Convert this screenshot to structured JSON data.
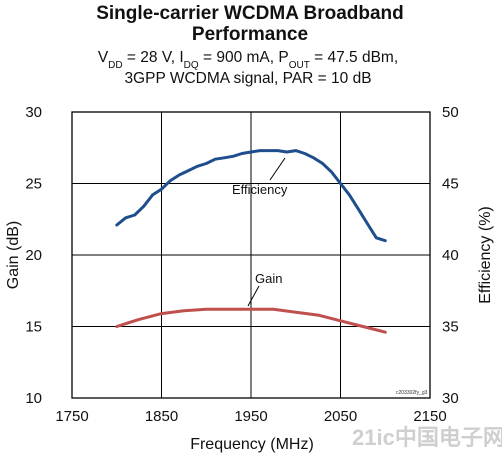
{
  "chart_data": {
    "type": "line",
    "title_lines": [
      "Single-carrier WCDMA Broadband",
      "Performance"
    ],
    "subtitle": {
      "line1_parts": [
        {
          "t": "V",
          "sub": "DD"
        },
        {
          "t": " = 28 V, I",
          "sub": "DQ"
        },
        {
          "t": " = 900 mA, P",
          "sub": "OUT"
        },
        {
          "t": " = 47.5 dBm,",
          "sub": ""
        }
      ],
      "line2": "3GPP WCDMA signal, PAR = 10 dB"
    },
    "xlabel": "Frequency (MHz)",
    "ylabel_left": "Gain (dB)",
    "ylabel_right": "Efficiency (%)",
    "xlim": [
      1750,
      2150
    ],
    "ylim_left": [
      10,
      30
    ],
    "ylim_right": [
      30,
      50
    ],
    "x_ticks": [
      1750,
      1850,
      1950,
      2050,
      2150
    ],
    "y_ticks_left": [
      10,
      15,
      20,
      25,
      30
    ],
    "y_ticks_right": [
      30,
      35,
      40,
      45,
      50
    ],
    "grid": true,
    "series": [
      {
        "name": "Efficiency",
        "axis": "right",
        "color": "#1f4e8c",
        "x": [
          1800,
          1810,
          1820,
          1830,
          1840,
          1850,
          1860,
          1870,
          1880,
          1890,
          1900,
          1910,
          1920,
          1930,
          1940,
          1950,
          1960,
          1970,
          1980,
          1990,
          2000,
          2010,
          2020,
          2030,
          2040,
          2050,
          2060,
          2070,
          2080,
          2090,
          2100
        ],
        "y": [
          42.1,
          42.6,
          42.8,
          43.4,
          44.2,
          44.6,
          45.2,
          45.6,
          45.9,
          46.2,
          46.4,
          46.7,
          46.8,
          46.9,
          47.1,
          47.2,
          47.3,
          47.3,
          47.3,
          47.2,
          47.3,
          47.1,
          46.8,
          46.4,
          45.8,
          45.0,
          44.2,
          43.2,
          42.2,
          41.2,
          41.0
        ]
      },
      {
        "name": "Gain",
        "axis": "left",
        "color": "#c0504d",
        "x": [
          1800,
          1825,
          1850,
          1875,
          1900,
          1925,
          1950,
          1975,
          2000,
          2025,
          2050,
          2075,
          2100
        ],
        "y": [
          15.0,
          15.5,
          15.9,
          16.1,
          16.2,
          16.2,
          16.2,
          16.2,
          16.0,
          15.8,
          15.4,
          15.0,
          14.6
        ]
      }
    ],
    "annotations": [
      {
        "text": "Efficiency",
        "series": "Efficiency"
      },
      {
        "text": "Gain",
        "series": "Gain"
      }
    ],
    "figure_code": "c203302fy_g3"
  },
  "watermark": "21ic中国电子网"
}
